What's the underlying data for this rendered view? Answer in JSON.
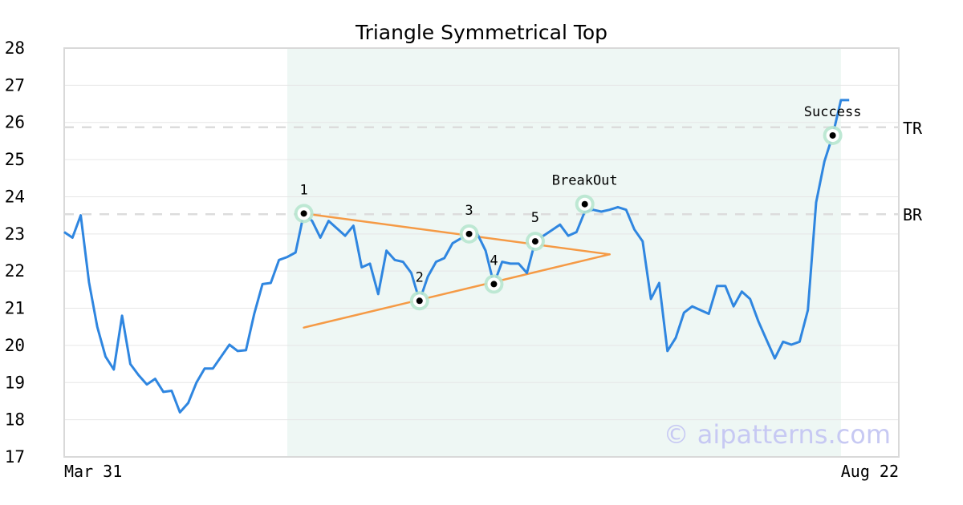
{
  "chart_data": {
    "type": "line",
    "title": "Triangle Symmetrical Top",
    "xlabel": "",
    "ylabel": "",
    "ylim": [
      17,
      28
    ],
    "yticks": [
      17,
      18,
      19,
      20,
      21,
      22,
      23,
      24,
      25,
      26,
      27,
      28
    ],
    "x_range_index": [
      0,
      101
    ],
    "x_tick_labels": [
      {
        "index": 0,
        "label": "Mar 31"
      },
      {
        "index": 101,
        "label": "Aug 22"
      }
    ],
    "grid": "horizontal",
    "highlight_index_range": [
      27,
      94
    ],
    "series": [
      {
        "color": "#2f86e0",
        "values": [
          23.05,
          22.9,
          23.5,
          21.7,
          20.5,
          19.7,
          19.35,
          20.8,
          19.5,
          19.2,
          18.95,
          19.1,
          18.75,
          18.78,
          18.2,
          18.45,
          19.0,
          19.38,
          19.38,
          19.7,
          20.02,
          19.85,
          19.87,
          20.85,
          21.65,
          21.68,
          22.3,
          22.38,
          22.5,
          23.55,
          23.35,
          22.9,
          23.35,
          23.15,
          22.95,
          23.22,
          22.1,
          22.2,
          21.38,
          22.55,
          22.3,
          22.25,
          21.95,
          21.2,
          21.85,
          22.25,
          22.35,
          22.75,
          22.88,
          22.98,
          23.0,
          22.55,
          21.65,
          22.25,
          22.2,
          22.2,
          21.95,
          22.8,
          22.95,
          23.1,
          23.25,
          22.95,
          23.05,
          23.6,
          23.65,
          23.6,
          23.65,
          23.72,
          23.65,
          23.12,
          22.8,
          21.25,
          21.68,
          19.85,
          20.2,
          20.88,
          21.05,
          20.95,
          20.85,
          21.6,
          21.6,
          21.05,
          21.45,
          21.25,
          20.65,
          20.15,
          19.65,
          20.1,
          20.02,
          20.1,
          20.95,
          23.85,
          24.95,
          25.65,
          26.6,
          26.6
        ]
      }
    ],
    "reference_lines": [
      {
        "label": "TR",
        "value": 25.87
      },
      {
        "label": "BR",
        "value": 23.53
      }
    ],
    "trend_lines": [
      {
        "color": "#f59a45",
        "points": [
          [
            29,
            23.55
          ],
          [
            66,
            22.45
          ]
        ]
      },
      {
        "color": "#f59a45",
        "points": [
          [
            29,
            20.48
          ],
          [
            66,
            22.45
          ]
        ]
      }
    ],
    "annotations": [
      {
        "label": "1",
        "x": 29,
        "y": 23.55
      },
      {
        "label": "2",
        "x": 43,
        "y": 21.2
      },
      {
        "label": "3",
        "x": 49,
        "y": 23.0
      },
      {
        "label": "4",
        "x": 52,
        "y": 21.65
      },
      {
        "label": "5",
        "x": 57,
        "y": 22.8
      },
      {
        "label": "BreakOut",
        "x": 63,
        "y": 23.8
      },
      {
        "label": "Success",
        "x": 93,
        "y": 25.65
      }
    ],
    "watermark": "© aipatterns.com"
  }
}
